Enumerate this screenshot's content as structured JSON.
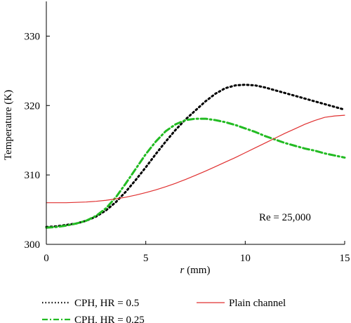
{
  "chart_data": {
    "type": "line",
    "title": "",
    "xlabel": {
      "italic": "r",
      "rest": " (mm)"
    },
    "ylabel": "Temperature (K)",
    "xlim": [
      0,
      15
    ],
    "ylim": [
      300,
      335
    ],
    "xticks": [
      0,
      5,
      10,
      15
    ],
    "yticks": [
      300,
      310,
      320,
      330
    ],
    "grid": false,
    "annotation": "Re = 25,000",
    "legend_placement": "bottom",
    "series": [
      {
        "name": "CPH, HR = 0.5",
        "color": "#000000",
        "style": "dotted",
        "x": [
          0,
          0.5,
          1,
          1.5,
          2,
          2.5,
          3,
          3.5,
          4,
          4.5,
          5,
          5.5,
          6,
          6.5,
          7,
          7.5,
          8,
          8.5,
          9,
          9.5,
          10,
          10.5,
          11,
          11.5,
          12,
          12.5,
          13,
          13.5,
          14,
          14.5,
          15
        ],
        "y": [
          302.5,
          302.6,
          302.8,
          303.0,
          303.4,
          304.0,
          304.9,
          306.1,
          307.6,
          309.3,
          311.1,
          313.0,
          314.8,
          316.5,
          318.0,
          319.3,
          320.6,
          321.7,
          322.5,
          322.9,
          323.0,
          322.9,
          322.6,
          322.2,
          321.8,
          321.4,
          321.0,
          320.6,
          320.2,
          319.8,
          319.4
        ]
      },
      {
        "name": "CPH, HR = 0.25",
        "color": "#22bb22",
        "style": "dashdot",
        "x": [
          0,
          0.5,
          1,
          1.5,
          2,
          2.5,
          3,
          3.5,
          4,
          4.5,
          5,
          5.5,
          6,
          6.5,
          7,
          7.5,
          8,
          8.5,
          9,
          9.5,
          10,
          10.5,
          11,
          11.5,
          12,
          12.5,
          13,
          13.5,
          14,
          14.5,
          15
        ],
        "y": [
          302.4,
          302.5,
          302.7,
          303.0,
          303.4,
          304.1,
          305.2,
          306.8,
          308.8,
          310.9,
          313.0,
          314.8,
          316.3,
          317.3,
          317.9,
          318.1,
          318.1,
          317.9,
          317.6,
          317.2,
          316.7,
          316.2,
          315.6,
          315.1,
          314.6,
          314.2,
          313.8,
          313.5,
          313.1,
          312.8,
          312.5
        ]
      },
      {
        "name": "Plain channel",
        "color": "#e03030",
        "style": "solid",
        "x": [
          0,
          0.5,
          1,
          1.5,
          2,
          2.5,
          3,
          3.5,
          4,
          4.5,
          5,
          5.5,
          6,
          6.5,
          7,
          7.5,
          8,
          8.5,
          9,
          9.5,
          10,
          10.5,
          11,
          11.5,
          12,
          12.5,
          13,
          13.5,
          14,
          14.5,
          15
        ],
        "y": [
          306.0,
          306.0,
          306.0,
          306.05,
          306.1,
          306.2,
          306.35,
          306.55,
          306.8,
          307.1,
          307.45,
          307.85,
          308.3,
          308.8,
          309.35,
          309.95,
          310.55,
          311.2,
          311.85,
          312.5,
          313.2,
          313.9,
          314.6,
          315.3,
          316.0,
          316.65,
          317.3,
          317.85,
          318.3,
          318.5,
          318.6
        ]
      }
    ]
  }
}
